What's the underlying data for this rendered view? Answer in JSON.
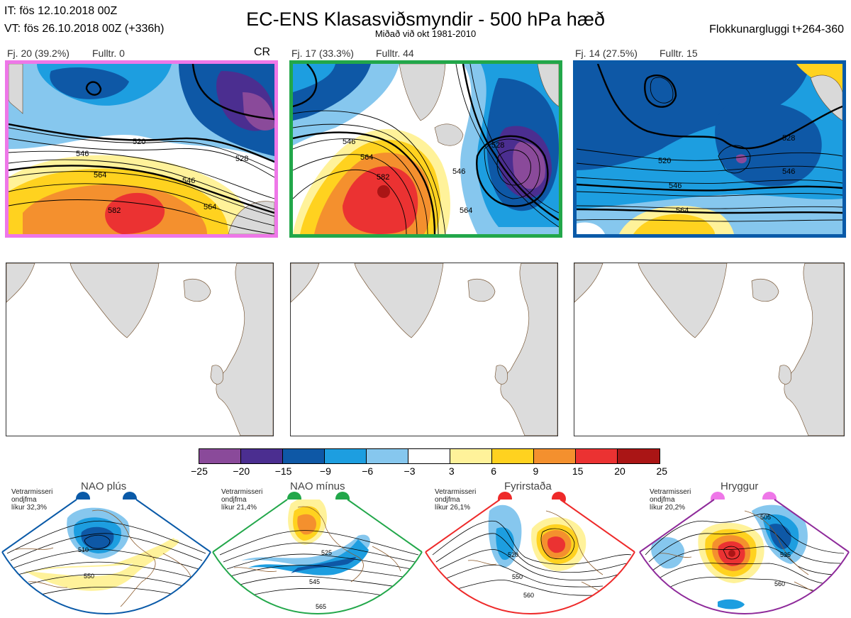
{
  "header": {
    "it_line": "IT: fös 12.10.2018 00Z",
    "vt_line": "VT: fös 26.10.2018 00Z  (+336h)",
    "title": "EC-ENS Klasasviðsmyndir - 500 hPa hæð",
    "subtitle": "Miðað við okt 1981-2010",
    "window": "Flokkunargluggi t+264-360"
  },
  "panels": [
    {
      "label": "Fj. 20 (39.2%)",
      "count": "Fulltr. 0",
      "tag": "CR",
      "border": "#ee77e8",
      "contours": [
        "520",
        "528",
        "546",
        "546",
        "564",
        "564",
        "582"
      ]
    },
    {
      "label": "Fj. 17 (33.3%)",
      "count": "Fulltr. 44",
      "tag": "",
      "border": "#22a74a",
      "contours": [
        "546",
        "564",
        "582",
        "528",
        "546",
        "564"
      ]
    },
    {
      "label": "Fj. 14 (27.5%)",
      "count": "Fulltr. 15",
      "tag": "",
      "border": "#0a5aa8",
      "contours": [
        "528",
        "520",
        "546",
        "546",
        "564"
      ]
    }
  ],
  "colorbar": {
    "colors": [
      "#8a4a9a",
      "#4b2e90",
      "#0e58a6",
      "#1d9ee0",
      "#86c7ee",
      "#ffffff",
      "#fff29a",
      "#ffd21f",
      "#f4902e",
      "#eb3232",
      "#aa1515"
    ],
    "ticks": [
      "−25",
      "−20",
      "−15",
      "−9",
      "−6",
      "−3",
      "3",
      "6",
      "9",
      "15",
      "20",
      "25"
    ]
  },
  "regimes": [
    {
      "name": "NAO plús",
      "note_line1": "Vetrarmisseri",
      "note_line2": "ondjfma",
      "note_line3": "líkur 32,3%",
      "color": "#0a5aa8",
      "contours": [
        "510",
        "550"
      ]
    },
    {
      "name": "NAO mínus",
      "note_line1": "Vetrarmisseri",
      "note_line2": "ondjfma",
      "note_line3": "líkur 21,4%",
      "color": "#22a74a",
      "contours": [
        "525",
        "545",
        "565"
      ]
    },
    {
      "name": "Fyrirstaða",
      "note_line1": "Vetrarmisseri",
      "note_line2": "ondjfma",
      "note_line3": "líkur 26,1%",
      "color": "#ee2a2a",
      "contours": [
        "520",
        "550",
        "560"
      ]
    },
    {
      "name": "Hryggur",
      "note_line1": "Vetrarmisseri",
      "note_line2": "ondjfma",
      "note_line3": "líkur 20,2%",
      "color": "#ee77e8",
      "contours": [
        "505",
        "535",
        "560"
      ]
    }
  ]
}
